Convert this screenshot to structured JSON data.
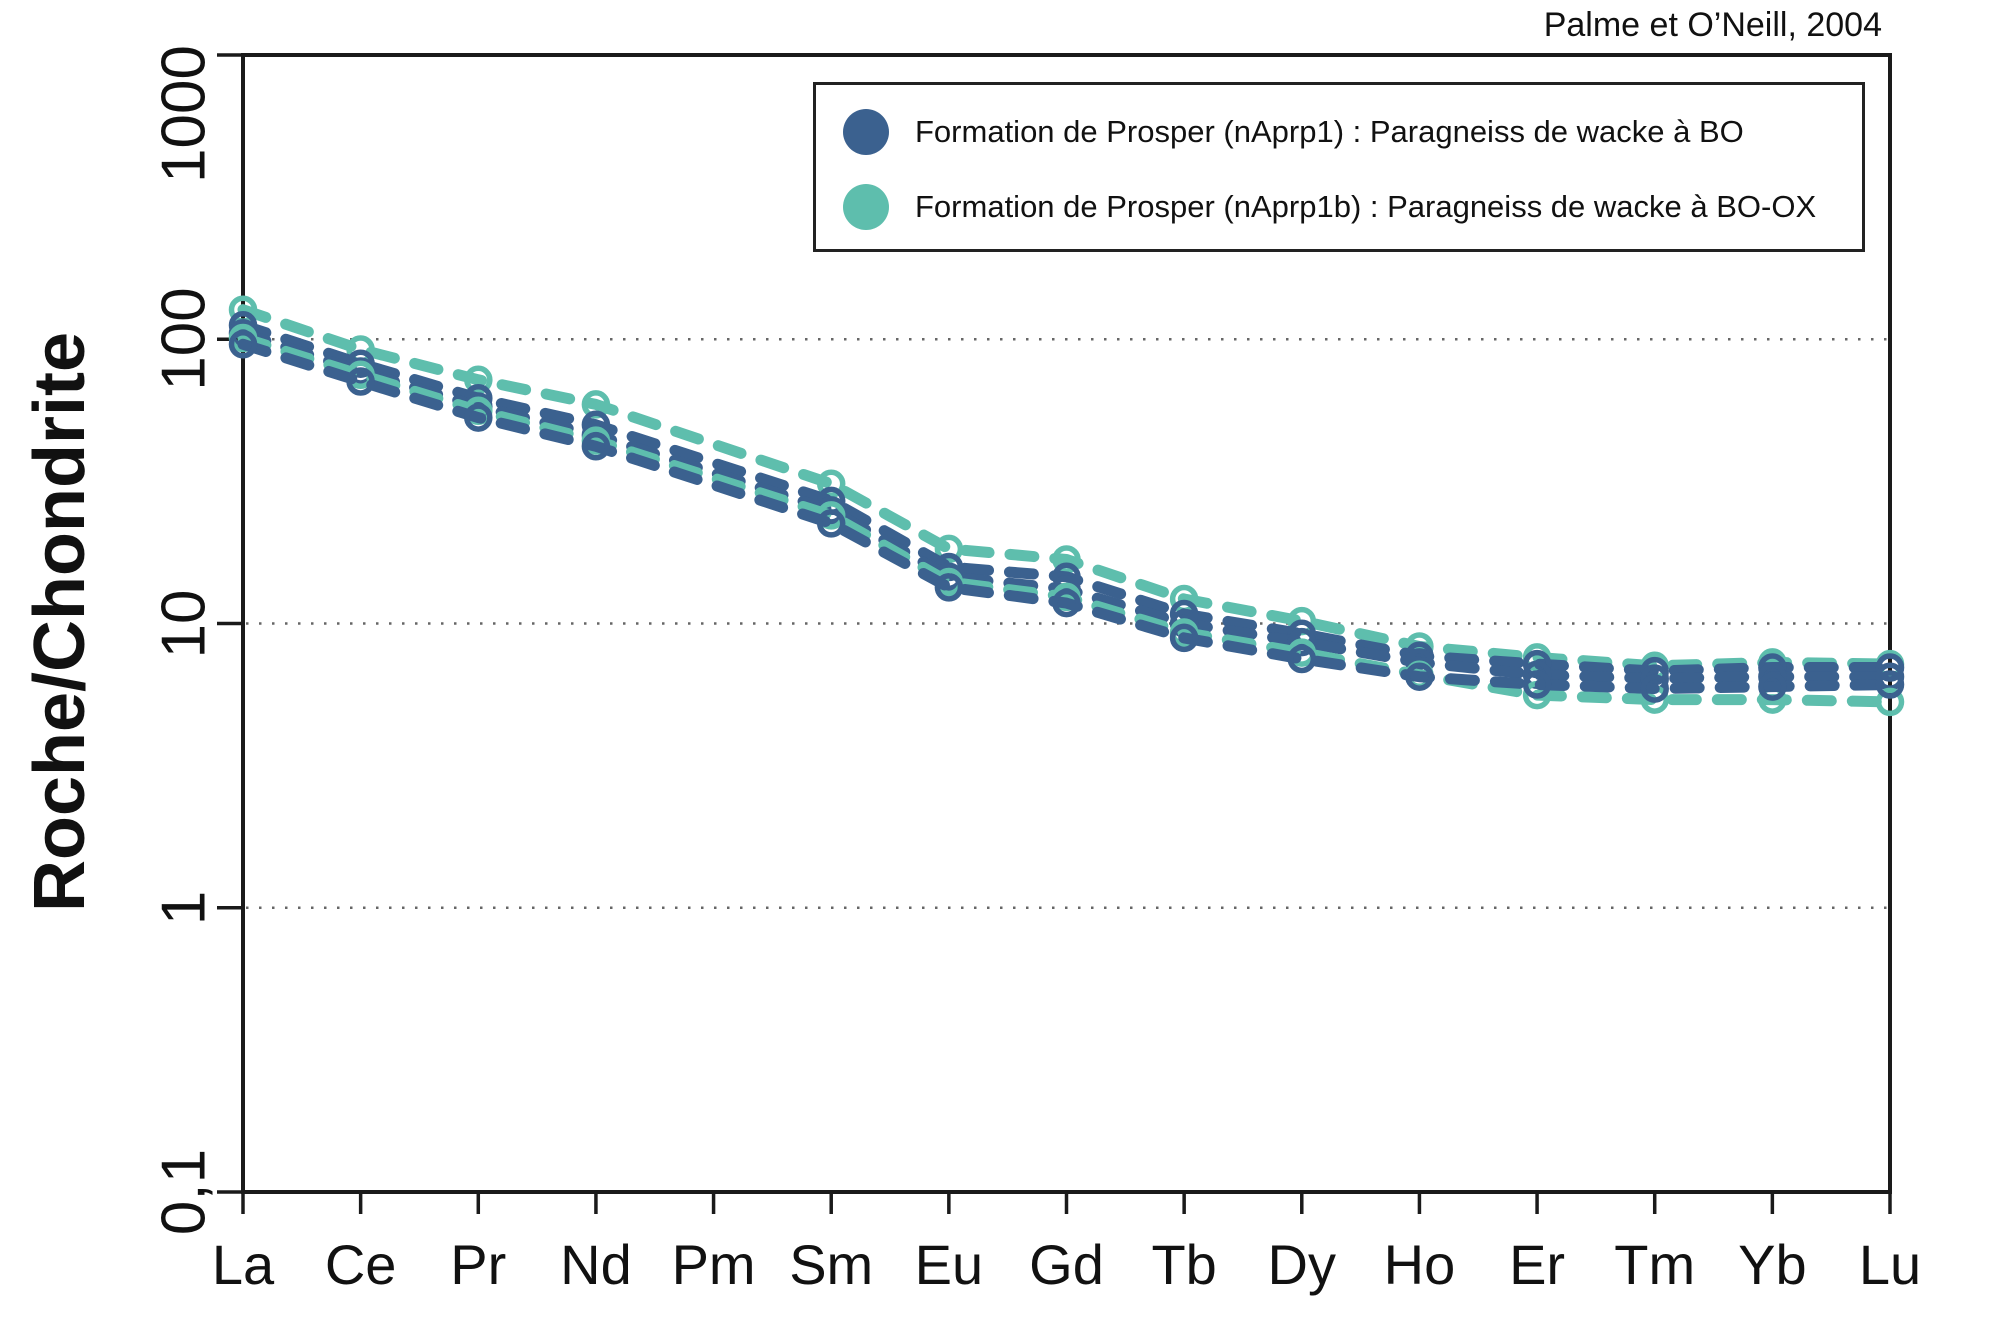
{
  "attribution": "Palme et O’Neill, 2004",
  "chart_data": {
    "type": "line",
    "subtype": "REE-spider-diagram",
    "y_scale": "log",
    "grid": "dotted-horizontal",
    "categories": [
      "La",
      "Ce",
      "Pr",
      "Nd",
      "Pm",
      "Sm",
      "Eu",
      "Gd",
      "Tb",
      "Dy",
      "Ho",
      "Er",
      "Tm",
      "Yb",
      "Lu"
    ],
    "y_axis": {
      "label": "Roche/Chondrite",
      "ylim": [
        0.1,
        1000
      ],
      "ticks": [
        {
          "value": 1000,
          "label": "1000"
        },
        {
          "value": 100,
          "label": "100"
        },
        {
          "value": 10,
          "label": "10"
        },
        {
          "value": 1,
          "label": "1"
        },
        {
          "value": 0.1,
          "label": "0,1"
        }
      ],
      "gridlines": [
        100,
        10,
        1
      ]
    },
    "colors": {
      "blue": "#3B618F",
      "teal": "#5EBEAD"
    },
    "legend": [
      {
        "color_key": "blue",
        "label": "Formation de Prosper (nAprp1) : Paragneiss de wacke à BO"
      },
      {
        "color_key": "teal",
        "label": "Formation de Prosper (nAprp1b) : Paragneiss de wacke à BO-OX"
      }
    ],
    "legend_position": "top-right-inside",
    "series": [
      {
        "group": "nAprp1b",
        "color_key": "teal",
        "values": [
          127,
          92,
          72,
          59,
          null,
          31,
          18.3,
          16.8,
          12.2,
          10.2,
          8.3,
          7.6,
          7.1,
          7.3,
          7.2
        ]
      },
      {
        "group": "nAprp1",
        "color_key": "blue",
        "values": [
          112,
          82,
          62,
          50,
          null,
          27,
          15.8,
          14.6,
          10.8,
          9.2,
          7.7,
          7.2,
          6.8,
          7.0,
          7.0
        ]
      },
      {
        "group": "nAprp1",
        "color_key": "blue",
        "values": [
          105,
          77,
          58,
          46,
          null,
          25,
          14.6,
          13.2,
          10.0,
          8.6,
          7.3,
          6.6,
          6.4,
          6.5,
          6.5
        ]
      },
      {
        "group": "nAprp1b",
        "color_key": "teal",
        "values": [
          101,
          75,
          56,
          44,
          null,
          24,
          14.0,
          12.4,
          9.3,
          7.9,
          6.6,
          5.6,
          5.4,
          5.4,
          5.3
        ]
      },
      {
        "group": "nAprp1",
        "color_key": "blue",
        "values": [
          96,
          71,
          53,
          42,
          null,
          22.5,
          13.4,
          11.8,
          8.9,
          7.5,
          6.5,
          6.1,
          5.9,
          6.0,
          6.1
        ]
      }
    ],
    "line_style": "dashed",
    "marker": "open-circle"
  }
}
